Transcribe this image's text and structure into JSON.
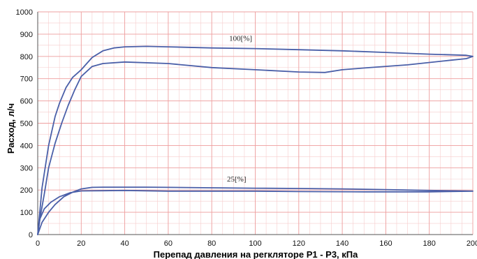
{
  "chart_data": {
    "type": "line",
    "title": "",
    "xlabel": "Перепад давления на регкляторе P1 - P3, кПа",
    "ylabel": "Расход, л/ч",
    "xlim": [
      0,
      200
    ],
    "ylim": [
      0,
      1000
    ],
    "x_ticks": [
      0,
      20,
      40,
      60,
      80,
      100,
      120,
      140,
      160,
      180,
      200
    ],
    "y_ticks": [
      0,
      100,
      200,
      300,
      400,
      500,
      600,
      700,
      800,
      900,
      1000
    ],
    "grid": true,
    "colors": {
      "line": "#4a5fa8",
      "minor_grid": "#f6cccc",
      "major_grid": "#ee9f9f",
      "axis": "#555555"
    },
    "series": [
      {
        "name": "100[%]",
        "label_at": [
          88,
          870
        ],
        "x": [
          0,
          2,
          5,
          8,
          10,
          13,
          16,
          20,
          25,
          30,
          35,
          40,
          50,
          60,
          80,
          100,
          120,
          140,
          160,
          180,
          197,
          200,
          197,
          190,
          170,
          150,
          140,
          132,
          120,
          100,
          80,
          60,
          40,
          30,
          25,
          20,
          17,
          14,
          11,
          8,
          5,
          3,
          1,
          0
        ],
        "y": [
          0,
          210,
          400,
          530,
          590,
          660,
          705,
          740,
          795,
          825,
          838,
          843,
          845,
          843,
          838,
          835,
          830,
          825,
          818,
          810,
          805,
          800,
          790,
          783,
          762,
          748,
          740,
          728,
          730,
          740,
          750,
          768,
          775,
          768,
          755,
          710,
          650,
          580,
          500,
          410,
          300,
          180,
          70,
          0
        ]
      },
      {
        "name": "25[%]",
        "label_at": [
          87,
          238
        ],
        "x": [
          0,
          2,
          5,
          8,
          12,
          16,
          20,
          25,
          30,
          40,
          50,
          60,
          80,
          100,
          120,
          140,
          160,
          180,
          200,
          180,
          150,
          120,
          100,
          80,
          60,
          40,
          30,
          20,
          15,
          10,
          6,
          3,
          1,
          0
        ],
        "y": [
          0,
          55,
          100,
          135,
          170,
          190,
          205,
          212,
          213,
          213,
          213,
          212,
          210,
          208,
          207,
          205,
          202,
          198,
          195,
          192,
          192,
          193,
          195,
          195,
          195,
          198,
          197,
          196,
          188,
          170,
          145,
          115,
          70,
          0
        ]
      }
    ]
  }
}
